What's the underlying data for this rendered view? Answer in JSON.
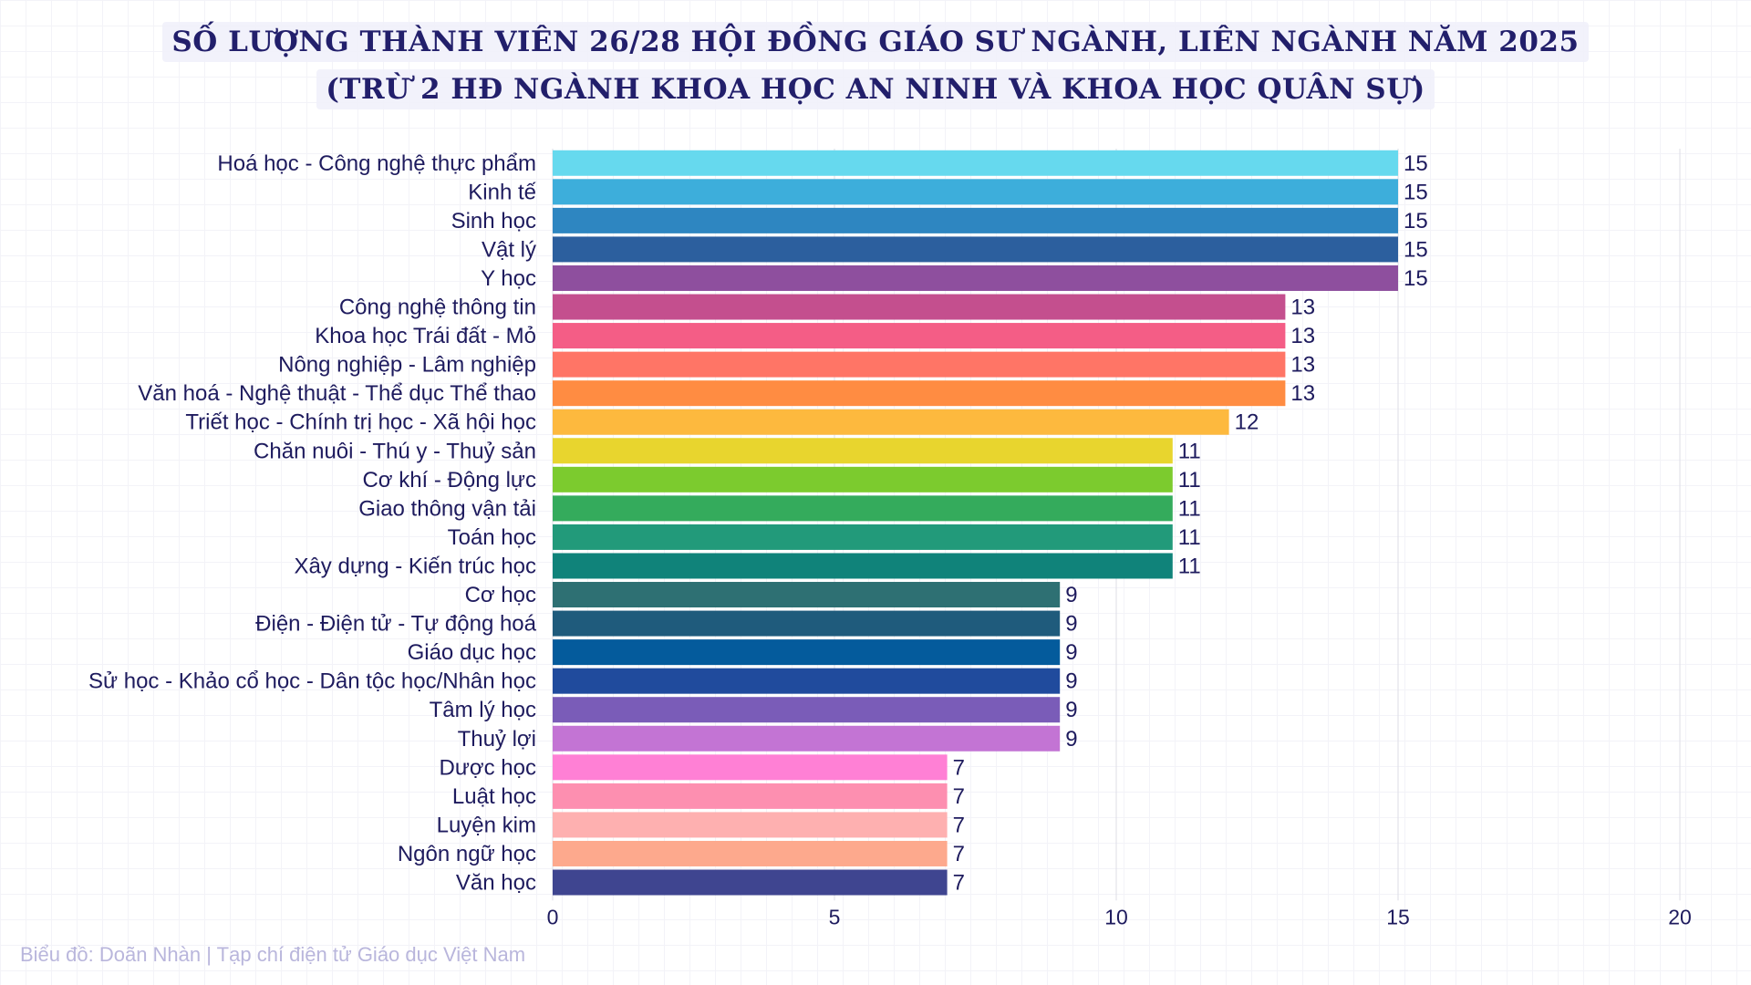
{
  "title": {
    "line1": "SỐ LƯỢNG THÀNH VIÊN 26/28 HỘI ĐỒNG GIÁO SƯ NGÀNH, LIÊN NGÀNH NĂM 2025",
    "line2": "(TRỪ 2 HĐ NGÀNH KHOA HỌC AN NINH VÀ KHOA HỌC QUÂN SỰ)"
  },
  "source_note": "Biểu đồ: Doãn Nhàn | Tạp chí điện tử Giáo dục Việt Nam",
  "chart_data": {
    "type": "bar",
    "orientation": "horizontal",
    "title": "SỐ LƯỢNG THÀNH VIÊN 26/28 HỘI ĐỒNG GIÁO SƯ NGÀNH, LIÊN NGÀNH NĂM 2025 (TRỪ 2 HĐ NGÀNH KHOA HỌC AN NINH VÀ KHOA HỌC QUÂN SỰ)",
    "xlabel": "",
    "ylabel": "",
    "xlim": [
      0,
      20
    ],
    "xticks": [
      0,
      5,
      10,
      15,
      20
    ],
    "grid": true,
    "legend": "none",
    "categories": [
      "Hoá học - Công nghệ thực phẩm",
      "Kinh tế",
      "Sinh học",
      "Vật lý",
      "Y học",
      "Công nghệ thông tin",
      "Khoa học Trái đất - Mỏ",
      "Nông nghiệp - Lâm nghiệp",
      "Văn hoá - Nghệ thuật - Thể dục Thể thao",
      "Triết học - Chính trị học - Xã hội học",
      "Chăn nuôi - Thú y - Thuỷ sản",
      "Cơ khí - Động lực",
      "Giao thông vận tải",
      "Toán học",
      "Xây dựng - Kiến trúc học",
      "Cơ học",
      "Điện - Điện tử - Tự động hoá",
      "Giáo dục học",
      "Sử học - Khảo cổ học - Dân tộc học/Nhân học",
      "Tâm lý học",
      "Thuỷ lợi",
      "Dược học",
      "Luật học",
      "Luyện kim",
      "Ngôn ngữ học",
      "Văn học"
    ],
    "values": [
      15,
      15,
      15,
      15,
      15,
      13,
      13,
      13,
      13,
      12,
      11,
      11,
      11,
      11,
      11,
      9,
      9,
      9,
      9,
      9,
      9,
      7,
      7,
      7,
      7,
      7
    ],
    "colors": [
      "#66d9ee",
      "#3daedb",
      "#2e86c1",
      "#2c5f9e",
      "#8e4f9e",
      "#c44f8e",
      "#f45d86",
      "#ff7566",
      "#ff8c42",
      "#fdb93e",
      "#e8d52e",
      "#7ccb2e",
      "#34ab5c",
      "#229a7a",
      "#10837a",
      "#2e7073",
      "#1f5b7c",
      "#045b9c",
      "#204b9d",
      "#7a5cb8",
      "#c374d4",
      "#ff80d5",
      "#fd8fb0",
      "#feb0b0",
      "#fda98d",
      "#3f4590"
    ],
    "label_color": "#1e1b5e",
    "tick_color": "#1e1b5e"
  }
}
